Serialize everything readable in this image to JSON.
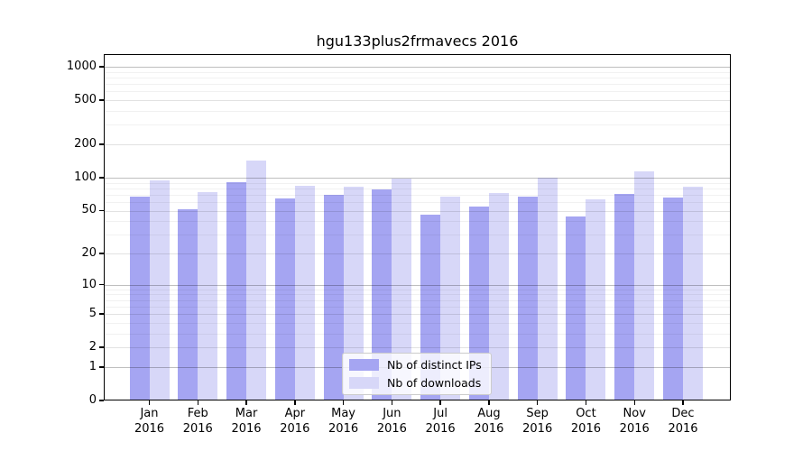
{
  "chart_data": {
    "type": "bar",
    "title": "hgu133plus2frmavecs 2016",
    "categories": [
      "Jan",
      "Feb",
      "Mar",
      "Apr",
      "May",
      "Jun",
      "Jul",
      "Aug",
      "Sep",
      "Oct",
      "Nov",
      "Dec"
    ],
    "x_year": "2016",
    "series": [
      {
        "name": "Nb of distinct IPs",
        "color": "#a5a5f2",
        "values": [
          67,
          51,
          91,
          65,
          69,
          78,
          46,
          54,
          67,
          44,
          71,
          66
        ]
      },
      {
        "name": "Nb of downloads",
        "color": "#d7d7f8",
        "values": [
          94,
          74,
          144,
          84,
          83,
          97,
          67,
          72,
          100,
          63,
          114,
          82
        ]
      }
    ],
    "yticks": [
      0,
      1,
      2,
      5,
      10,
      20,
      50,
      100,
      200,
      500,
      1000
    ],
    "yscale": "log1p",
    "ylim": [
      0,
      1300
    ],
    "grid": true,
    "legend_position": "bottom-center"
  }
}
